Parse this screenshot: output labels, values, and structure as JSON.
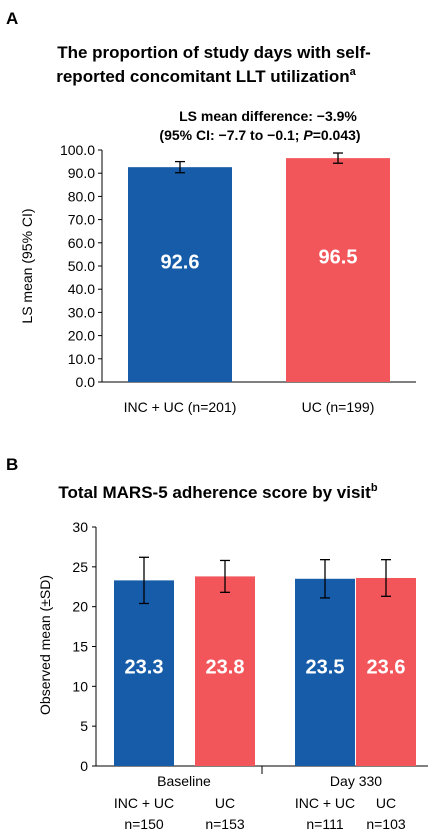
{
  "colors": {
    "series_a": "#175ca8",
    "series_b": "#f2565b",
    "axis": "#000000"
  },
  "panel_a": {
    "letter": "A",
    "title_line1": "The proportion of study days with self-",
    "title_line2": "reported concomitant LLT utilization",
    "title_sup": "a",
    "annotation_line1": "LS mean difference: −3.9%",
    "annotation_line2_prefix": "(95% CI: −7.7 to −0.1; ",
    "annotation_p": "P",
    "annotation_line2_suffix": "=0.043)"
  },
  "panel_b": {
    "letter": "B",
    "title": "Total MARS-5 adherence score by visit",
    "title_sup": "b"
  },
  "chart_data": [
    {
      "type": "bar",
      "ylabel": "LS mean (95% CI)",
      "ylim": [
        0,
        100
      ],
      "yticks": [
        "0.0",
        "10.0",
        "20.0",
        "30.0",
        "40.0",
        "50.0",
        "60.0",
        "70.0",
        "80.0",
        "90.0",
        "100.0"
      ],
      "categories": [
        "INC + UC (n=201)",
        "UC (n=199)"
      ],
      "values": [
        92.6,
        96.5
      ],
      "value_labels": [
        "92.6",
        "96.5"
      ],
      "error_low": [
        90.2,
        94.3
      ],
      "error_high": [
        95.0,
        98.7
      ],
      "grid": false
    },
    {
      "type": "bar",
      "ylabel": "Observed mean (±SD)",
      "ylim": [
        0,
        30
      ],
      "yticks": [
        "0",
        "5",
        "10",
        "15",
        "20",
        "25",
        "30"
      ],
      "groups": [
        "Baseline",
        "Day 330"
      ],
      "bars": [
        {
          "group": "Baseline",
          "label": "INC + UC",
          "n": "n=150",
          "value": 23.3,
          "value_label": "23.3",
          "sd": 2.9,
          "series": "a"
        },
        {
          "group": "Baseline",
          "label": "UC",
          "n": "n=153",
          "value": 23.8,
          "value_label": "23.8",
          "sd": 2.0,
          "series": "b"
        },
        {
          "group": "Day 330",
          "label": "INC + UC",
          "n": "n=111",
          "value": 23.5,
          "value_label": "23.5",
          "sd": 2.4,
          "series": "a"
        },
        {
          "group": "Day 330",
          "label": "UC",
          "n": "n=103",
          "value": 23.6,
          "value_label": "23.6",
          "sd": 2.3,
          "series": "b"
        }
      ],
      "grid": false
    }
  ]
}
